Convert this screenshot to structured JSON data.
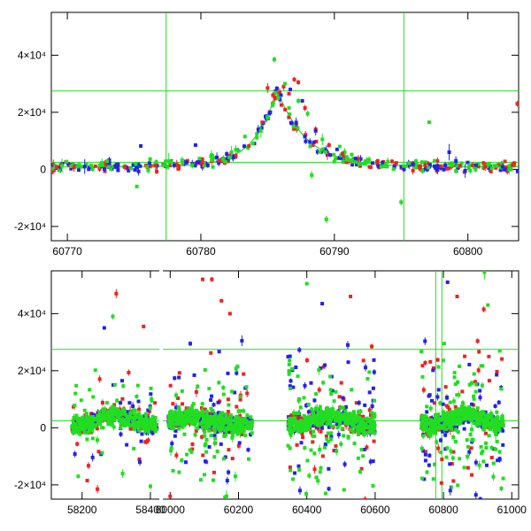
{
  "chart_data": [
    {
      "type": "scatter",
      "title": "",
      "xlabel": "",
      "ylabel": "",
      "xlim": [
        60768.8,
        60803.8
      ],
      "ylim": [
        -25000,
        55000
      ],
      "x_ticks": [
        {
          "value": 60770,
          "label": "60770"
        },
        {
          "value": 60780,
          "label": "60780"
        },
        {
          "value": 60790,
          "label": "60790"
        },
        {
          "value": 60800,
          "label": "60800"
        }
      ],
      "y_ticks": [
        {
          "value": 40000,
          "label": "4×10⁴"
        },
        {
          "value": 20000,
          "label": "2×10⁴"
        },
        {
          "value": 0,
          "label": "0"
        },
        {
          "value": -20000,
          "label": "-2×10⁴"
        }
      ],
      "hlines": [
        27500,
        2500
      ],
      "vlines": [
        60777.4,
        60795.2
      ],
      "model_curve": {
        "color": "#22dd22",
        "peak_x": 60785.7,
        "peak_y": 28000,
        "baseline": 900,
        "rise_width": 1.7,
        "decay_width": 2.2
      },
      "series": [
        {
          "color": "#ee2222",
          "points": [
            [
              60769.2,
              900
            ],
            [
              60770.5,
              700
            ],
            [
              60772.1,
              1100
            ],
            [
              60774.3,
              800
            ],
            [
              60776.6,
              1300
            ],
            [
              60778.2,
              1600
            ],
            [
              60780.1,
              2300
            ],
            [
              60781.4,
              3100
            ],
            [
              60782.6,
              4700
            ],
            [
              60783.6,
              8200
            ],
            [
              60784.6,
              16500
            ],
            [
              60785.0,
              28500
            ],
            [
              60785.4,
              26000
            ],
            [
              60785.9,
              27000
            ],
            [
              60786.2,
              29000
            ],
            [
              60786.6,
              26500
            ],
            [
              60787.0,
              31500
            ],
            [
              60787.3,
              30500
            ],
            [
              60787.8,
              21500
            ],
            [
              60788.6,
              14000
            ],
            [
              60789.6,
              8500
            ],
            [
              60790.6,
              5500
            ],
            [
              60791.8,
              3700
            ],
            [
              60793.2,
              2600
            ],
            [
              60794.6,
              2100
            ],
            [
              60796.8,
              1500
            ],
            [
              60798.0,
              1100
            ],
            [
              60799.4,
              1300
            ],
            [
              60801.3,
              900
            ],
            [
              60803.3,
              1500
            ],
            [
              60803.7,
              23000
            ]
          ]
        },
        {
          "color": "#2222ee",
          "points": [
            [
              60771.3,
              1000
            ],
            [
              60773.6,
              1200
            ],
            [
              60775.5,
              8200
            ],
            [
              60778.0,
              1500
            ],
            [
              60779.6,
              8500
            ],
            [
              60781.2,
              4200
            ],
            [
              60782.4,
              4400
            ],
            [
              60784.3,
              14000
            ],
            [
              60785.2,
              20000
            ],
            [
              60786.0,
              26000
            ],
            [
              60786.7,
              28000
            ],
            [
              60787.6,
              24000
            ],
            [
              60788.6,
              13500
            ],
            [
              60790.2,
              7000
            ],
            [
              60791.6,
              3800
            ],
            [
              60793.6,
              2400
            ],
            [
              60795.9,
              1800
            ],
            [
              60798.3,
              1400
            ],
            [
              60798.6,
              6000
            ],
            [
              60799.1,
              3000
            ],
            [
              60800.6,
              1500
            ],
            [
              60802.6,
              900
            ],
            [
              60799.8,
              -500
            ]
          ]
        },
        {
          "color": "#22dd22",
          "points": [
            [
              60769.6,
              1200
            ],
            [
              60770.9,
              1500
            ],
            [
              60772.6,
              2300
            ],
            [
              60773.1,
              900
            ],
            [
              60775.2,
              -6000
            ],
            [
              60776.2,
              3600
            ],
            [
              60777.6,
              2900
            ],
            [
              60778.6,
              3200
            ],
            [
              60779.9,
              3800
            ],
            [
              60780.8,
              5000
            ],
            [
              60781.7,
              3400
            ],
            [
              60782.3,
              6000
            ],
            [
              60783.3,
              11500
            ],
            [
              60783.9,
              9000
            ],
            [
              60784.5,
              13500
            ],
            [
              60785.0,
              18000
            ],
            [
              60785.5,
              38500
            ],
            [
              60785.8,
              25000
            ],
            [
              60786.3,
              30000
            ],
            [
              60786.6,
              21500
            ],
            [
              60787.3,
              24000
            ],
            [
              60788.0,
              19500
            ],
            [
              60788.3,
              -2000
            ],
            [
              60789.1,
              10500
            ],
            [
              60789.4,
              -17500
            ],
            [
              60790.4,
              8000
            ],
            [
              60791.3,
              5200
            ],
            [
              60792.6,
              3400
            ],
            [
              60794.0,
              2700
            ],
            [
              60795.0,
              -11500
            ],
            [
              60795.6,
              2200
            ],
            [
              60797.1,
              16500
            ],
            [
              60797.5,
              3000
            ],
            [
              60798.6,
              2000
            ],
            [
              60800.1,
              1500
            ],
            [
              60801.6,
              1800
            ],
            [
              60803.1,
              1200
            ]
          ]
        }
      ]
    },
    {
      "type": "scatter",
      "title": "",
      "xlabel": "",
      "ylabel": "",
      "xlim": [
        58110,
        61020
      ],
      "ylim": [
        -25000,
        55000
      ],
      "axis_break": [
        58425,
        59980
      ],
      "x_ticks": [
        {
          "value": 58200,
          "label": "58200"
        },
        {
          "value": 58400,
          "label": "58400"
        },
        {
          "value": 60000,
          "label": "60000"
        },
        {
          "value": 60200,
          "label": "60200"
        },
        {
          "value": 60400,
          "label": "60400"
        },
        {
          "value": 60600,
          "label": "60600"
        },
        {
          "value": 60800,
          "label": "60800"
        },
        {
          "value": 61000,
          "label": "61000"
        }
      ],
      "y_ticks": [
        {
          "value": 40000,
          "label": "4×10⁴"
        },
        {
          "value": 20000,
          "label": "2×10⁴"
        },
        {
          "value": 0,
          "label": "0"
        },
        {
          "value": -20000,
          "label": "-2×10⁴"
        }
      ],
      "hlines": [
        27500,
        2500
      ],
      "vlines": [
        60777.4,
        60795.2
      ],
      "seasons": [
        {
          "x_range": [
            58170,
            58420
          ],
          "peak_x": 58290,
          "spread": 6500,
          "outlier_rate": 0.14,
          "density": 260
        },
        {
          "x_range": [
            59995,
            60240
          ],
          "peak_x": 60060,
          "spread": 7500,
          "outlier_rate": 0.22,
          "density": 280
        },
        {
          "x_range": [
            60345,
            60600
          ],
          "peak_x": 60470,
          "spread": 8000,
          "outlier_rate": 0.22,
          "density": 300
        },
        {
          "x_range": [
            60735,
            60975
          ],
          "peak_x": 60870,
          "spread": 8500,
          "outlier_rate": 0.26,
          "density": 300
        }
      ],
      "highlight_points": [
        {
          "x": 58300,
          "y": 47000,
          "color": "#ee2222"
        },
        {
          "x": 58380,
          "y": 35500,
          "color": "#ee2222"
        },
        {
          "x": 58265,
          "y": 35000,
          "color": "#2222ee"
        },
        {
          "x": 58290,
          "y": 39000,
          "color": "#22dd22"
        },
        {
          "x": 58215,
          "y": -18500,
          "color": "#ee2222"
        },
        {
          "x": 58245,
          "y": -21500,
          "color": "#ee2222"
        },
        {
          "x": 58400,
          "y": -20500,
          "color": "#22dd22"
        },
        {
          "x": 60095,
          "y": 52000,
          "color": "#ee2222"
        },
        {
          "x": 60122,
          "y": 52000,
          "color": "#ee2222"
        },
        {
          "x": 60150,
          "y": 44500,
          "color": "#ee2222"
        },
        {
          "x": 60175,
          "y": 40000,
          "color": "#ee2222"
        },
        {
          "x": 60210,
          "y": 30500,
          "color": "#2222ee"
        },
        {
          "x": 60000,
          "y": -24000,
          "color": "#ee2222"
        },
        {
          "x": 60165,
          "y": -24000,
          "color": "#22dd22"
        },
        {
          "x": 60400,
          "y": 50500,
          "color": "#22dd22"
        },
        {
          "x": 60445,
          "y": 43500,
          "color": "#2222ee"
        },
        {
          "x": 60528,
          "y": 46000,
          "color": "#ee2222"
        },
        {
          "x": 60520,
          "y": 29000,
          "color": "#2222ee"
        },
        {
          "x": 60590,
          "y": 28500,
          "color": "#ee2222"
        },
        {
          "x": 60380,
          "y": -22000,
          "color": "#2222ee"
        },
        {
          "x": 60455,
          "y": -23000,
          "color": "#22dd22"
        },
        {
          "x": 60812,
          "y": 51000,
          "color": "#2222ee"
        },
        {
          "x": 60920,
          "y": 54500,
          "color": "#22dd22"
        },
        {
          "x": 60930,
          "y": 43000,
          "color": "#22dd22"
        },
        {
          "x": 60918,
          "y": 41500,
          "color": "#ee2222"
        },
        {
          "x": 60840,
          "y": 46000,
          "color": "#ee2222"
        },
        {
          "x": 60820,
          "y": -22000,
          "color": "#2222ee"
        },
        {
          "x": 60895,
          "y": -23500,
          "color": "#2222ee"
        },
        {
          "x": 60908,
          "y": -25000,
          "color": "#2222ee"
        }
      ],
      "series_colors": [
        "#ee2222",
        "#2222ee",
        "#22dd22"
      ]
    }
  ]
}
